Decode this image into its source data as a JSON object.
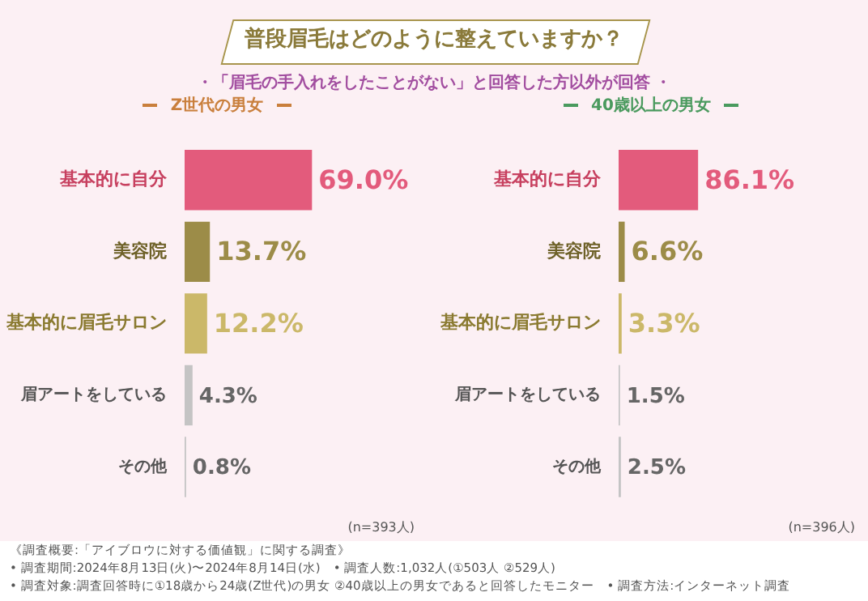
{
  "chart_data": [
    {
      "type": "bar",
      "orientation": "horizontal",
      "title": "Z世代の男女",
      "categories": [
        "基本的に自分",
        "美容院",
        "基本的に眉毛サロン",
        "眉アートをしている",
        "その他"
      ],
      "values": [
        69.0,
        13.7,
        12.2,
        4.3,
        0.8
      ],
      "colors": [
        "#e35b7c",
        "#9c8c48",
        "#cbb869",
        "#c4c4c4",
        "#c4c4c4"
      ],
      "value_labels": [
        "69.0%",
        "13.7%",
        "12.2%",
        "4.3%",
        "0.8%"
      ],
      "tick_labels": "y",
      "grid": false,
      "annotations": [
        "普段眉毛はどのように整えていますか？",
        "・「眉毛の手入れをしたことがない」と回答した方以外が回答 ・",
        "(n=393人)",
        "《調査概要:「アイブロウに対する価値観」に関する調査》",
        "• 調査期間:2024年8月13日(火)〜2024年8月14日(水)　• 調査人数:1,032人(①503人 ②529人)",
        "• 調査対象:調査回答時に①18歳から24歳(Z世代)の男女 ②40歳以上の男女であると回答したモニター　• 調査方法:インターネット調査"
      ]
    },
    {
      "type": "bar",
      "orientation": "horizontal",
      "title": "40歳以上の男女",
      "categories": [
        "基本的に自分",
        "美容院",
        "基本的に眉毛サロン",
        "眉アートをしている",
        "その他"
      ],
      "values": [
        86.1,
        6.6,
        3.3,
        1.5,
        2.5
      ],
      "colors": [
        "#e35b7c",
        "#9c8c48",
        "#cbb869",
        "#c4c4c4",
        "#c4c4c4"
      ],
      "value_labels": [
        "86.1%",
        "6.6%",
        "3.3%",
        "1.5%",
        "2.5%"
      ],
      "tick_labels": "y",
      "grid": false,
      "annotations": [
        "(n=396人)"
      ]
    }
  ]
}
